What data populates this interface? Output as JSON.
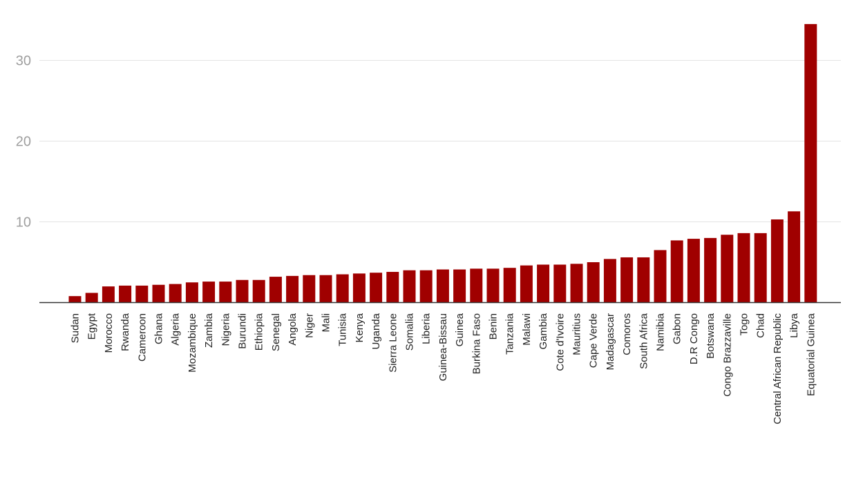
{
  "chart_data": {
    "type": "bar",
    "title": "",
    "xlabel": "",
    "ylabel": "",
    "ylim": [
      0,
      35
    ],
    "yticks": [
      10,
      20,
      30
    ],
    "grid": true,
    "legend": "none",
    "bar_color": "#a00000",
    "categories": [
      "Sudan",
      "Egypt",
      "Morocco",
      "Rwanda",
      "Cameroon",
      "Ghana",
      "Algeria",
      "Mozambique",
      "Zambia",
      "Nigeria",
      "Burundi",
      "Ethiopia",
      "Senegal",
      "Angola",
      "Niger",
      "Mali",
      "Tunisia",
      "Kenya",
      "Uganda",
      "Sierra Leone",
      "Somalia",
      "Liberia",
      "Guinea-Bissau",
      "Guinea",
      "Burkina Faso",
      "Benin",
      "Tanzania",
      "Malawi",
      "Gambia",
      "Cote d'Ivoire",
      "Mauritius",
      "Cape Verde",
      "Madagascar",
      "Comoros",
      "South Africa",
      "Namibia",
      "Gabon",
      "D.R Congo",
      "Botswana",
      "Congo Brazzaville",
      "Togo",
      "Chad",
      "Central African Republic",
      "Libya",
      "Equatorial Guinea"
    ],
    "values": [
      0.8,
      1.2,
      2.0,
      2.1,
      2.1,
      2.2,
      2.3,
      2.5,
      2.6,
      2.6,
      2.8,
      2.8,
      3.2,
      3.3,
      3.4,
      3.4,
      3.5,
      3.6,
      3.7,
      3.8,
      4.0,
      4.0,
      4.1,
      4.1,
      4.2,
      4.2,
      4.3,
      4.6,
      4.7,
      4.7,
      4.8,
      5.0,
      5.4,
      5.6,
      5.6,
      6.5,
      7.7,
      7.9,
      8.0,
      8.4,
      8.6,
      8.6,
      10.3,
      11.3,
      34.5
    ]
  }
}
